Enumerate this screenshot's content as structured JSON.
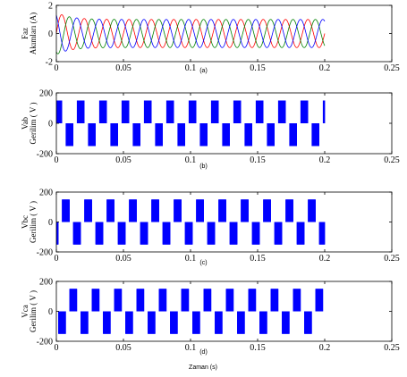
{
  "xlabel": "Zaman (s)",
  "chart_data": [
    {
      "type": "line",
      "caption": "(a)",
      "ylabel": [
        "Faz",
        "Akımları (A)"
      ],
      "xlim": [
        0,
        0.25
      ],
      "ylim": [
        -2,
        2
      ],
      "xticks": [
        "0",
        "0.05",
        "0.1",
        "0.15",
        "0.2",
        "0.25"
      ],
      "yticks": [
        "2",
        "0",
        "-2"
      ],
      "signal": {
        "kind": "three-phase-sine",
        "amplitude": 1,
        "frequency_hz": 60,
        "t_end": 0.2,
        "startup_peak": 1.5,
        "startup_decay_s": 0.01
      },
      "series": [
        {
          "phase_deg": 0,
          "color": "#ff0000"
        },
        {
          "phase_deg": -120,
          "color": "#008000"
        },
        {
          "phase_deg": 120,
          "color": "#0000ff"
        }
      ]
    },
    {
      "type": "area",
      "caption": "(b)",
      "ylabel": [
        "Vab",
        "Gerilim ( V )"
      ],
      "xlim": [
        0,
        0.25
      ],
      "ylim": [
        -200,
        200
      ],
      "xticks": [
        "0",
        "0.05",
        "0.1",
        "0.15",
        "0.2",
        "0.25"
      ],
      "yticks": [
        "200",
        "0",
        "-200"
      ],
      "signal": {
        "kind": "six-step",
        "amplitude": 150,
        "frequency_hz": 60,
        "phase_deg": 30,
        "t_end": 0.2,
        "color": "#0000ff"
      }
    },
    {
      "type": "area",
      "caption": "(c)",
      "ylabel": [
        "Vbc",
        "Gerilim ( V )"
      ],
      "xlim": [
        0,
        0.25
      ],
      "ylim": [
        -200,
        200
      ],
      "xticks": [
        "0",
        "0.05",
        "0.1",
        "0.15",
        "0.2",
        "0.25"
      ],
      "yticks": [
        "200",
        "0",
        "-200"
      ],
      "signal": {
        "kind": "six-step",
        "amplitude": 150,
        "frequency_hz": 60,
        "phase_deg": -90,
        "t_end": 0.2,
        "color": "#0000ff"
      }
    },
    {
      "type": "area",
      "caption": "(d)",
      "ylabel": [
        "Vca",
        "Gerilim ( V )"
      ],
      "xlim": [
        0,
        0.25
      ],
      "ylim": [
        -200,
        200
      ],
      "xticks": [
        "0",
        "0.05",
        "0.1",
        "0.15",
        "0.2",
        "0.25"
      ],
      "yticks": [
        "200",
        "0",
        "-200"
      ],
      "signal": {
        "kind": "six-step",
        "amplitude": 150,
        "frequency_hz": 60,
        "phase_deg": 150,
        "t_end": 0.2,
        "color": "#0000ff"
      }
    }
  ]
}
